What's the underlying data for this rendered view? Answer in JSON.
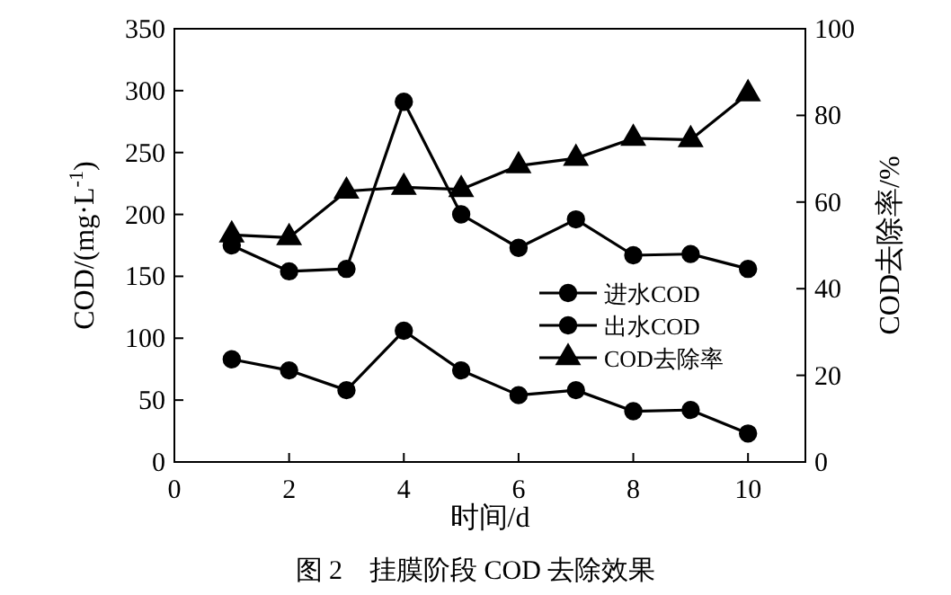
{
  "chart_data": {
    "type": "line",
    "title": "图 2　挂膜阶段 COD 去除效果",
    "xlabel": "时间/d",
    "ylabel": "COD/(mg·L$^{-1}$)",
    "y2label": "COD去除率/%",
    "x": [
      1,
      2,
      3,
      4,
      5,
      6,
      7,
      8,
      9,
      10
    ],
    "xlim": [
      0,
      11
    ],
    "xticks": [
      0,
      2,
      4,
      6,
      8,
      10
    ],
    "ylim": [
      0,
      350
    ],
    "yticks": [
      0,
      50,
      100,
      150,
      200,
      250,
      300,
      350
    ],
    "y2lim": [
      0,
      100
    ],
    "y2ticks": [
      0,
      20,
      40,
      60,
      80,
      100
    ],
    "legend": "right",
    "grid": false,
    "line_style": "solid",
    "series": [
      {
        "name": "进水COD",
        "color": "#000000",
        "marker": "circle",
        "values": [
          175,
          154,
          156,
          291,
          200,
          173,
          196,
          167,
          168,
          156
        ]
      },
      {
        "name": "出水COD",
        "color": "#000000",
        "marker": "circle",
        "values": [
          83,
          74,
          58,
          106,
          74,
          54,
          58,
          41,
          42,
          23
        ]
      },
      {
        "name": "COD去除率",
        "color": "#000000",
        "marker": "triangle",
        "axis": "y2",
        "values": [
          52.4,
          51.8,
          62.5,
          63.4,
          62.9,
          68.4,
          70.1,
          74.7,
          74.4,
          85
        ]
      }
    ]
  }
}
